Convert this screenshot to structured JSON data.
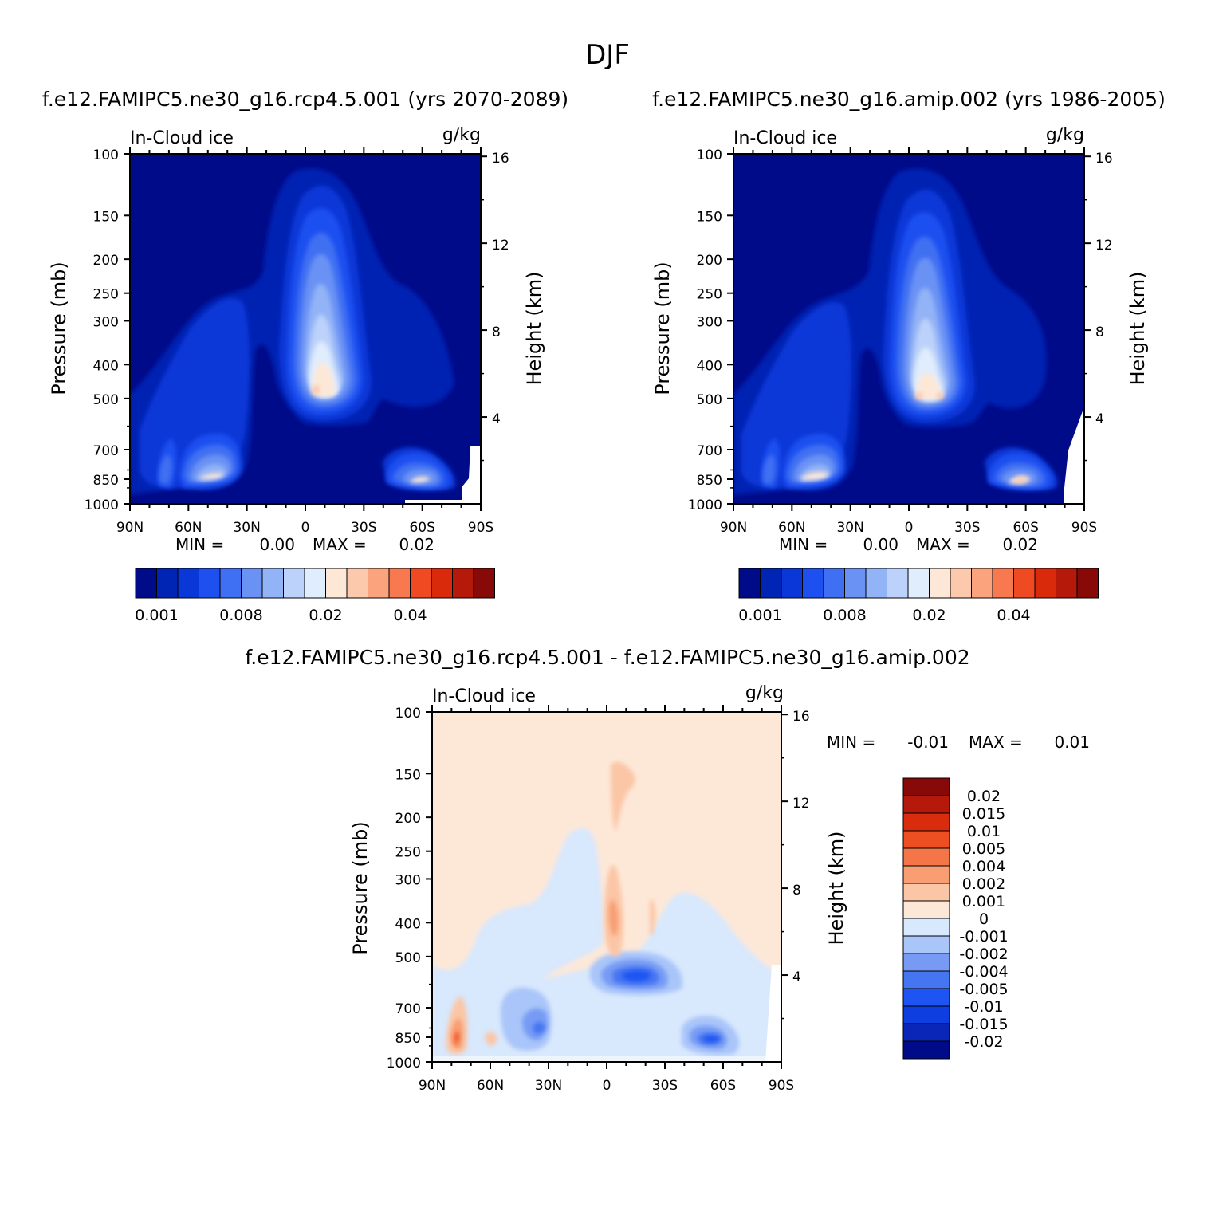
{
  "page": {
    "title": "DJF"
  },
  "colors": {
    "model_scale": [
      "#000b8a",
      "#0024b3",
      "#0a38d8",
      "#1e50f0",
      "#3f6ff2",
      "#6a92f4",
      "#93b3f7",
      "#bcd2fa",
      "#e0edfd",
      "#fde8d8",
      "#fcc9ad",
      "#fba37d",
      "#f8784f",
      "#ef4a22",
      "#d92a0c",
      "#b4190a",
      "#870a08"
    ],
    "diff_scale": [
      "#000b8a",
      "#0a26b8",
      "#0e3de0",
      "#1e55f2",
      "#4675f2",
      "#779bf5",
      "#a9c5f9",
      "#d8e8fd",
      "#fde8d8",
      "#fbc6a6",
      "#f89e72",
      "#f47548",
      "#ed4e22",
      "#d92c0c",
      "#b4190a",
      "#870a08"
    ]
  },
  "chart_data": [
    {
      "type": "heatmap",
      "title": "f.e12.FAMIPC5.ne30_g16.rcp4.5.001 (yrs 2070-2089)",
      "left_label": "In-Cloud ice",
      "right_label": "g/kg",
      "ylabel": "Pressure (mb)",
      "y2label": "Height (km)",
      "xticks": [
        "90N",
        "60N",
        "30N",
        "0",
        "30S",
        "60S",
        "90S"
      ],
      "yticks": [
        100,
        150,
        200,
        250,
        300,
        400,
        500,
        700,
        850,
        1000
      ],
      "y2ticks": [
        16,
        12,
        8,
        4
      ],
      "ylim": [
        1000,
        100
      ],
      "min_label": "MIN =",
      "min_value": "0.00",
      "max_label": "MAX =",
      "max_value": "0.02",
      "colorbar_labels": [
        "0.001",
        "0.008",
        "0.02",
        "0.04"
      ],
      "features": [
        {
          "name": "tropical upper column",
          "lat": 2,
          "pressure": 450,
          "max_value": 0.02
        },
        {
          "name": "NH midlat low cloud",
          "lat": 47,
          "pressure": 830,
          "max_value": 0.015
        },
        {
          "name": "NH high-lat low cloud",
          "lat": 72,
          "pressure": 850,
          "max_value": 0.012
        },
        {
          "name": "SH midlat low cloud",
          "lat": -60,
          "pressure": 850,
          "max_value": 0.018
        }
      ]
    },
    {
      "type": "heatmap",
      "title": "f.e12.FAMIPC5.ne30_g16.amip.002 (yrs 1986-2005)",
      "left_label": "In-Cloud ice",
      "right_label": "g/kg",
      "ylabel": "Pressure (mb)",
      "y2label": "Height (km)",
      "xticks": [
        "90N",
        "60N",
        "30N",
        "0",
        "30S",
        "60S",
        "90S"
      ],
      "yticks": [
        100,
        150,
        200,
        250,
        300,
        400,
        500,
        700,
        850,
        1000
      ],
      "y2ticks": [
        16,
        12,
        8,
        4
      ],
      "ylim": [
        1000,
        100
      ],
      "min_label": "MIN =",
      "min_value": "0.00",
      "max_label": "MAX =",
      "max_value": "0.02",
      "colorbar_labels": [
        "0.001",
        "0.008",
        "0.02",
        "0.04"
      ],
      "features": [
        {
          "name": "tropical upper column",
          "lat": -5,
          "pressure": 480,
          "max_value": 0.02
        },
        {
          "name": "NH midlat low cloud",
          "lat": 45,
          "pressure": 840,
          "max_value": 0.016
        },
        {
          "name": "NH high-lat low cloud",
          "lat": 72,
          "pressure": 850,
          "max_value": 0.012
        },
        {
          "name": "SH midlat low cloud",
          "lat": -57,
          "pressure": 850,
          "max_value": 0.02
        }
      ]
    },
    {
      "type": "heatmap",
      "title": "f.e12.FAMIPC5.ne30_g16.rcp4.5.001 - f.e12.FAMIPC5.ne30_g16.amip.002",
      "left_label": "In-Cloud ice",
      "right_label": "g/kg",
      "ylabel": "Pressure (mb)",
      "y2label": "Height (km)",
      "xticks": [
        "90N",
        "60N",
        "30N",
        "0",
        "30S",
        "60S",
        "90S"
      ],
      "yticks": [
        100,
        150,
        200,
        250,
        300,
        400,
        500,
        700,
        850,
        1000
      ],
      "y2ticks": [
        16,
        12,
        8,
        4
      ],
      "ylim": [
        1000,
        100
      ],
      "min_label": "MIN =",
      "min_value": "-0.01",
      "max_label": "MAX =",
      "max_value": "0.01",
      "colorbar_labels": [
        "0.02",
        "0.015",
        "0.01",
        "0.005",
        "0.004",
        "0.002",
        "0.001",
        "0",
        "-0.001",
        "-0.002",
        "-0.004",
        "-0.005",
        "-0.01",
        "-0.015",
        "-0.02"
      ],
      "features": [
        {
          "name": "NH high-lat increase",
          "lat": 77,
          "pressure": 850,
          "value": 0.005
        },
        {
          "name": "tropical upper increase",
          "lat": 0,
          "pressure": 400,
          "value": 0.004
        },
        {
          "name": "tropical mid decrease",
          "lat": -12,
          "pressure": 540,
          "value": -0.01
        },
        {
          "name": "NH midlat decrease",
          "lat": 35,
          "pressure": 800,
          "value": -0.005
        },
        {
          "name": "SH midlat decrease",
          "lat": -58,
          "pressure": 860,
          "value": -0.005
        }
      ]
    }
  ]
}
